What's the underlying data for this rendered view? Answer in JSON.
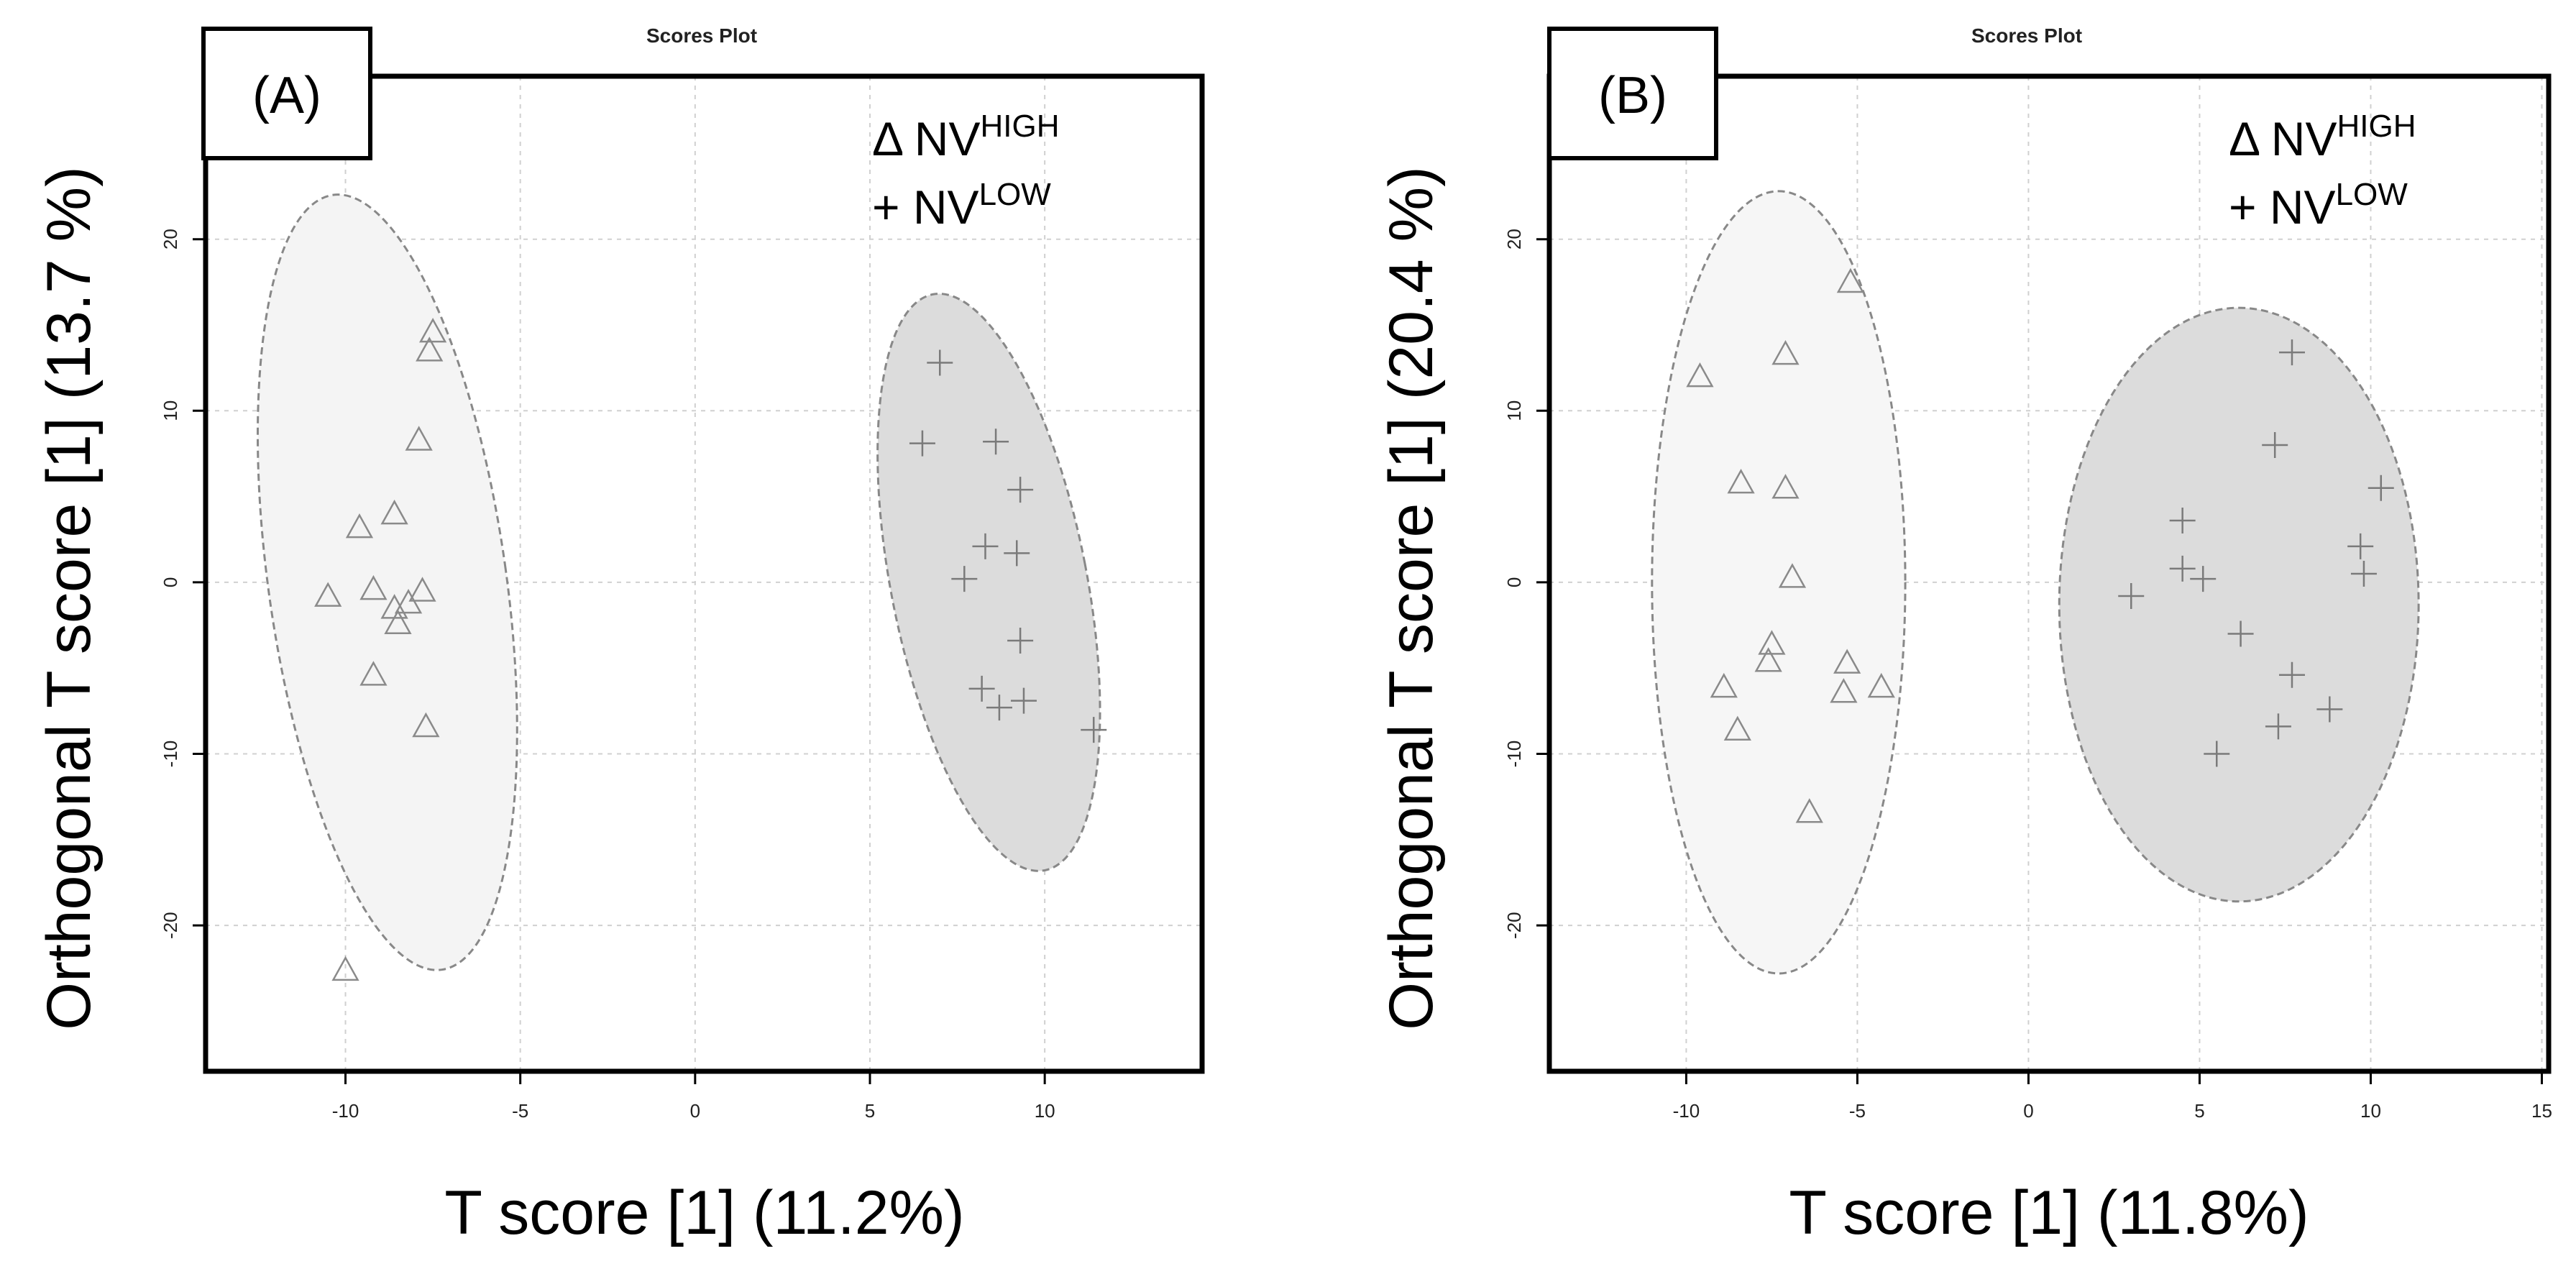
{
  "chart_data": [
    {
      "type": "scatter",
      "panel_label": "(A)",
      "title": "Scores Plot",
      "xlabel": "T score [1] (11.2%)",
      "ylabel": "Orthogonal T score [1] (13.7 %)",
      "xlim": [
        -14,
        14.5
      ],
      "ylim": [
        -28.5,
        29.5
      ],
      "xticks": [
        -10,
        -5,
        0,
        5,
        10
      ],
      "yticks": [
        -20,
        -10,
        0,
        10,
        20
      ],
      "grid": true,
      "legend_position": "top-right",
      "legend": [
        {
          "marker": "Δ",
          "text": "NV",
          "sup": "HIGH"
        },
        {
          "marker": "+",
          "text": "NV",
          "sup": "LOW"
        }
      ],
      "series": [
        {
          "marker": "triangle",
          "fill": "#f4f4f4",
          "points": [
            [
              -7.5,
              14.6
            ],
            [
              -7.6,
              13.5
            ],
            [
              -7.9,
              8.3
            ],
            [
              -9.6,
              3.2
            ],
            [
              -8.6,
              4.0
            ],
            [
              -10.5,
              -0.8
            ],
            [
              -9.2,
              -0.4
            ],
            [
              -8.6,
              -1.5
            ],
            [
              -8.2,
              -1.2
            ],
            [
              -7.8,
              -0.5
            ],
            [
              -8.5,
              -2.4
            ],
            [
              -9.2,
              -5.4
            ],
            [
              -7.7,
              -8.4
            ],
            [
              -10.0,
              -22.6
            ]
          ],
          "ellipse": {
            "cx": -8.8,
            "cy": 0.0,
            "rx": 3.4,
            "ry": 22.8,
            "angle": -8
          }
        },
        {
          "marker": "plus",
          "fill": "#dcdcdc",
          "points": [
            [
              7.0,
              12.8
            ],
            [
              6.5,
              8.1
            ],
            [
              8.6,
              8.2
            ],
            [
              9.3,
              5.4
            ],
            [
              8.3,
              2.1
            ],
            [
              9.2,
              1.7
            ],
            [
              7.7,
              0.2
            ],
            [
              9.3,
              -3.4
            ],
            [
              8.2,
              -6.2
            ],
            [
              8.7,
              -7.3
            ],
            [
              9.4,
              -6.9
            ],
            [
              11.4,
              -8.6
            ]
          ],
          "ellipse": {
            "cx": 8.4,
            "cy": 0.0,
            "rx": 2.8,
            "ry": 17.1,
            "angle": -11
          }
        }
      ]
    },
    {
      "type": "scatter",
      "panel_label": "(B)",
      "title": "Scores Plot",
      "xlabel": "T score [1] (11.8%)",
      "ylabel": "Orthogonal T score [1] (20.4 %)",
      "xlim": [
        -14,
        15.2
      ],
      "ylim": [
        -28.5,
        29.5
      ],
      "xticks": [
        -10,
        -5,
        0,
        5,
        10,
        15
      ],
      "yticks": [
        -20,
        -10,
        0,
        10,
        20
      ],
      "grid": true,
      "legend_position": "top-right",
      "legend": [
        {
          "marker": "Δ",
          "text": "NV",
          "sup": "HIGH"
        },
        {
          "marker": "+",
          "text": "NV",
          "sup": "LOW"
        }
      ],
      "series": [
        {
          "marker": "triangle",
          "fill": "#f6f6f6",
          "points": [
            [
              -5.2,
              17.5
            ],
            [
              -9.6,
              12.0
            ],
            [
              -7.1,
              13.3
            ],
            [
              -8.4,
              5.8
            ],
            [
              -7.1,
              5.5
            ],
            [
              -6.9,
              0.3
            ],
            [
              -7.5,
              -3.6
            ],
            [
              -7.6,
              -4.6
            ],
            [
              -5.3,
              -4.7
            ],
            [
              -4.3,
              -6.1
            ],
            [
              -5.4,
              -6.4
            ],
            [
              -8.9,
              -6.1
            ],
            [
              -8.5,
              -8.6
            ],
            [
              -6.4,
              -13.4
            ]
          ],
          "ellipse": {
            "cx": -7.3,
            "cy": 0.0,
            "rx": 3.7,
            "ry": 22.8,
            "angle": 0
          }
        },
        {
          "marker": "plus",
          "fill": "#dcdcdc",
          "points": [
            [
              7.7,
              13.4
            ],
            [
              7.2,
              8.0
            ],
            [
              10.3,
              5.5
            ],
            [
              4.5,
              3.6
            ],
            [
              4.5,
              0.8
            ],
            [
              5.1,
              0.2
            ],
            [
              9.7,
              2.1
            ],
            [
              9.8,
              0.5
            ],
            [
              3.0,
              -0.8
            ],
            [
              6.2,
              -3.0
            ],
            [
              7.7,
              -5.4
            ],
            [
              8.8,
              -7.4
            ],
            [
              7.3,
              -8.4
            ],
            [
              5.5,
              -10.0
            ]
          ],
          "ellipse": {
            "cx": 6.15,
            "cy": -1.3,
            "rx": 5.25,
            "ry": 17.3,
            "angle": 0
          }
        }
      ]
    }
  ]
}
